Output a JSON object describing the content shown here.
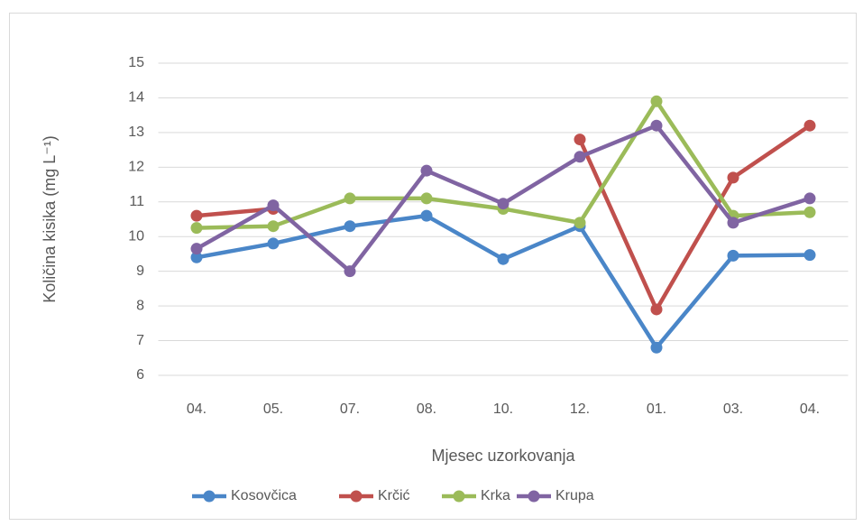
{
  "chart_data": {
    "type": "line",
    "x_label": "Mjesec uzorkovanja",
    "y_label": "Količina kisika (mg L⁻¹)",
    "categories": [
      "04.",
      "05.",
      "07.",
      "08.",
      "10.",
      "12.",
      "01.",
      "03.",
      "04."
    ],
    "series": [
      {
        "name": "Kosovčica",
        "color": "#4a86c8",
        "values": [
          9.4,
          9.8,
          10.3,
          10.6,
          9.35,
          10.3,
          6.8,
          9.45,
          9.47
        ]
      },
      {
        "name": "Krčić",
        "color": "#c0504d",
        "values": [
          10.6,
          10.8,
          null,
          null,
          null,
          12.8,
          7.9,
          11.7,
          13.2
        ]
      },
      {
        "name": "Krka",
        "color": "#9bbb59",
        "values": [
          10.25,
          10.3,
          11.1,
          11.1,
          10.8,
          10.4,
          13.9,
          10.6,
          10.7
        ]
      },
      {
        "name": "Krupa",
        "color": "#8064a2",
        "values": [
          9.65,
          10.9,
          9.0,
          11.9,
          10.95,
          12.3,
          13.2,
          10.4,
          11.1
        ]
      }
    ],
    "ylim": [
      6,
      15
    ],
    "yticks": [
      6,
      7,
      8,
      9,
      10,
      11,
      12,
      13,
      14,
      15
    ],
    "grid": true,
    "legend": "bottom"
  }
}
